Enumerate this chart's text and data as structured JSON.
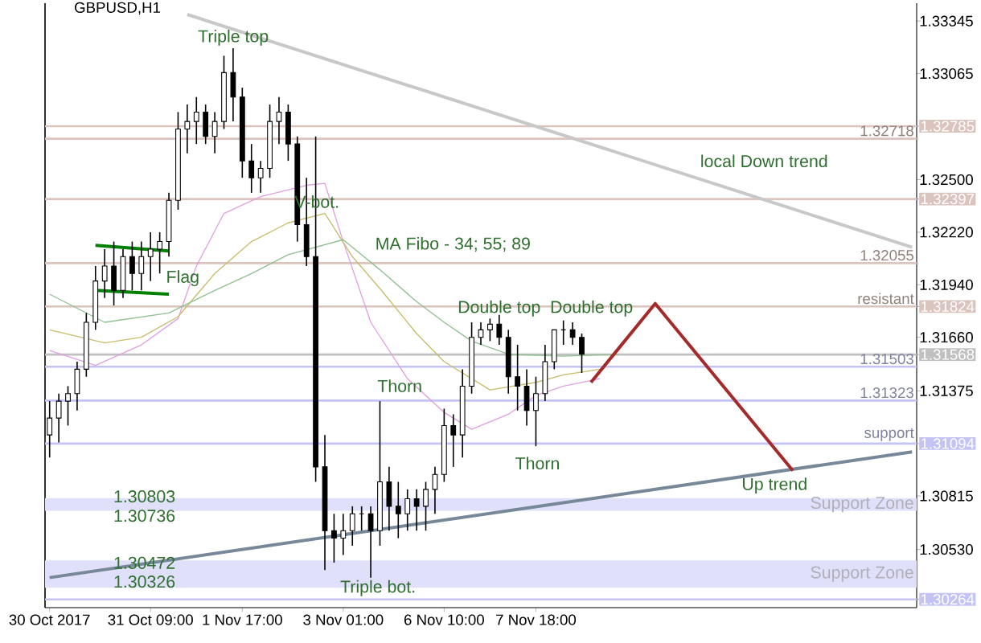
{
  "chart_data": {
    "type": "candlestick",
    "title": "GBPUSD,H1",
    "color": "#000000",
    "categories": [
      "30 Oct 2017",
      null,
      null,
      null,
      null,
      null,
      null,
      null,
      null,
      null,
      null,
      "31 Oct 09:00",
      null,
      null,
      null,
      null,
      null,
      null,
      null,
      null,
      null,
      "1 Nov 17:00",
      null,
      null,
      null,
      null,
      null,
      null,
      null,
      null,
      null,
      null,
      "3 Nov 01:00",
      null,
      null,
      null,
      null,
      null,
      null,
      null,
      null,
      null,
      null,
      "6 Nov 10:00",
      null,
      null,
      null,
      null,
      null,
      null,
      null,
      null,
      null,
      "7 Nov 18:00",
      null,
      null,
      null,
      null,
      null,
      null,
      null,
      null,
      null,
      null,
      null,
      null,
      null,
      null,
      null,
      null,
      null,
      null,
      null,
      null,
      null,
      null,
      null,
      null,
      null,
      null,
      null,
      null,
      null,
      null,
      null,
      null,
      null,
      null,
      null,
      null,
      null,
      null,
      null,
      null,
      null
    ],
    "ohlc": [
      [
        1.3114,
        1.3132,
        1.3102,
        1.3123
      ],
      [
        1.3123,
        1.3136,
        1.311,
        1.3132
      ],
      [
        1.3132,
        1.314,
        1.3119,
        1.3136
      ],
      [
        1.3136,
        1.3153,
        1.3127,
        1.3149
      ],
      [
        1.3149,
        1.3179,
        1.3145,
        1.3174
      ],
      [
        1.3174,
        1.3204,
        1.317,
        1.3196
      ],
      [
        1.3196,
        1.3213,
        1.3187,
        1.3204
      ],
      [
        1.3204,
        1.3217,
        1.3183,
        1.3191
      ],
      [
        1.3191,
        1.3213,
        1.3187,
        1.3209
      ],
      [
        1.3209,
        1.3217,
        1.3191,
        1.32
      ],
      [
        1.32,
        1.3217,
        1.3191,
        1.3209
      ],
      [
        1.3209,
        1.3222,
        1.3196,
        1.3213
      ],
      [
        1.3213,
        1.3222,
        1.32,
        1.3217
      ],
      [
        1.3217,
        1.3243,
        1.3209,
        1.3239
      ],
      [
        1.3239,
        1.3286,
        1.3234,
        1.3277
      ],
      [
        1.3277,
        1.329,
        1.3264,
        1.3281
      ],
      [
        1.3281,
        1.3294,
        1.3269,
        1.3286
      ],
      [
        1.3286,
        1.329,
        1.3269,
        1.3273
      ],
      [
        1.3273,
        1.3286,
        1.3264,
        1.3281
      ],
      [
        1.3281,
        1.3316,
        1.3277,
        1.3307
      ],
      [
        1.3307,
        1.332,
        1.3281,
        1.3294
      ],
      [
        1.3294,
        1.3299,
        1.3251,
        1.326
      ],
      [
        1.326,
        1.3269,
        1.3243,
        1.3251
      ],
      [
        1.3251,
        1.326,
        1.3243,
        1.3256
      ],
      [
        1.3256,
        1.329,
        1.3251,
        1.3281
      ],
      [
        1.3281,
        1.3294,
        1.3269,
        1.3286
      ],
      [
        1.3286,
        1.329,
        1.326,
        1.3269
      ],
      [
        1.3269,
        1.3273,
        1.3217,
        1.3226
      ],
      [
        1.3226,
        1.3251,
        1.3204,
        1.3209
      ],
      [
        1.3209,
        1.3273,
        1.3089,
        1.3097
      ],
      [
        1.3097,
        1.3114,
        1.3042,
        1.3063
      ],
      [
        1.3063,
        1.3072,
        1.3046,
        1.3059
      ],
      [
        1.3059,
        1.3072,
        1.305,
        1.3063
      ],
      [
        1.3063,
        1.3076,
        1.3055,
        1.3072
      ],
      [
        1.3072,
        1.3076,
        1.3063,
        1.3072
      ],
      [
        1.3072,
        1.3076,
        1.3038,
        1.3063
      ],
      [
        1.3063,
        1.3132,
        1.3055,
        1.3089
      ],
      [
        1.3089,
        1.3097,
        1.3063,
        1.3076
      ],
      [
        1.3076,
        1.3089,
        1.3059,
        1.3072
      ],
      [
        1.3072,
        1.3085,
        1.3063,
        1.308
      ],
      [
        1.308,
        1.3085,
        1.3063,
        1.3076
      ],
      [
        1.3076,
        1.3089,
        1.3063,
        1.3085
      ],
      [
        1.3085,
        1.3097,
        1.3072,
        1.3093
      ],
      [
        1.3093,
        1.3128,
        1.3089,
        1.3119
      ],
      [
        1.3119,
        1.3125,
        1.3097,
        1.3114
      ],
      [
        1.3114,
        1.3149,
        1.3102,
        1.314
      ],
      [
        1.314,
        1.3174,
        1.3136,
        1.3166
      ],
      [
        1.3166,
        1.3174,
        1.3162,
        1.317
      ],
      [
        1.317,
        1.3176,
        1.3164,
        1.3173
      ],
      [
        1.3173,
        1.3178,
        1.3162,
        1.3166
      ],
      [
        1.3166,
        1.317,
        1.3136,
        1.3145
      ],
      [
        1.3145,
        1.3162,
        1.3127,
        1.314
      ],
      [
        1.314,
        1.3149,
        1.3119,
        1.3127
      ],
      [
        1.3127,
        1.3145,
        1.3108,
        1.3136
      ],
      [
        1.3136,
        1.3162,
        1.3132,
        1.3153
      ],
      [
        1.3153,
        1.317,
        1.3149,
        1.317
      ],
      [
        1.317,
        1.3175,
        1.3162,
        1.317
      ],
      [
        1.317,
        1.3174,
        1.3162,
        1.3166
      ],
      [
        1.3166,
        1.3168,
        1.3147,
        1.3157
      ],
      null,
      null,
      null,
      null,
      null,
      null,
      null,
      null,
      null,
      null,
      null,
      null,
      null,
      null,
      null,
      null,
      null,
      null,
      null,
      null,
      null,
      null,
      null,
      null,
      null,
      null,
      null,
      null,
      null,
      null,
      null,
      null,
      null,
      null,
      null,
      null
    ],
    "series": [
      {
        "type": "line",
        "color": "#e0a0e0",
        "values": [
          1.3159,
          null,
          null,
          null,
          null,
          1.3151,
          null,
          null,
          null,
          null,
          1.3162,
          null,
          null,
          null,
          1.3176,
          null,
          1.3204,
          null,
          null,
          1.3232,
          null,
          null,
          null,
          1.3241,
          null,
          null,
          null,
          null,
          1.3247,
          null,
          1.3248,
          null,
          1.3217,
          null,
          null,
          1.3174,
          null,
          null,
          null,
          1.3144,
          null,
          null,
          null,
          1.3126,
          null,
          null,
          1.3117,
          null,
          null,
          null,
          1.3125,
          null,
          null,
          1.3135,
          null,
          null,
          1.314,
          null,
          null,
          null,
          1.3144,
          null,
          null,
          null,
          null,
          null,
          null,
          null,
          null,
          null,
          null,
          null,
          null,
          null,
          null,
          null,
          null,
          null,
          null,
          null,
          null,
          null,
          null,
          null,
          null,
          null,
          null,
          null,
          null,
          null,
          null,
          null,
          null,
          null,
          null
        ]
      },
      {
        "type": "line",
        "color": "#c8bc6c",
        "values": [
          1.317,
          null,
          null,
          null,
          null,
          null,
          1.3163,
          null,
          null,
          null,
          1.3166,
          null,
          null,
          null,
          1.3177,
          null,
          null,
          null,
          1.32,
          null,
          null,
          null,
          1.3217,
          null,
          null,
          null,
          1.3227,
          null,
          null,
          null,
          1.3232,
          null,
          null,
          1.3209,
          null,
          null,
          1.3192,
          null,
          null,
          null,
          1.3168,
          null,
          null,
          1.3153,
          null,
          null,
          null,
          null,
          1.3138,
          null,
          null,
          null,
          null,
          1.3142,
          null,
          null,
          1.3146,
          null,
          null,
          null,
          1.3149,
          null,
          null,
          null,
          null,
          null,
          null,
          null,
          null,
          null,
          null,
          null,
          null,
          null,
          null,
          null,
          null,
          null,
          null,
          null,
          null,
          null,
          null,
          null,
          null,
          null,
          null,
          null,
          null,
          null,
          null,
          null,
          null,
          null,
          null
        ]
      },
      {
        "type": "line",
        "color": "#90c090",
        "values": [
          1.3189,
          null,
          null,
          null,
          null,
          null,
          1.3174,
          null,
          null,
          null,
          null,
          null,
          null,
          1.3179,
          null,
          null,
          null,
          null,
          1.3191,
          null,
          null,
          null,
          1.32,
          null,
          null,
          null,
          1.321,
          null,
          null,
          null,
          null,
          null,
          1.3218,
          null,
          null,
          null,
          1.3202,
          null,
          null,
          null,
          1.3185,
          null,
          null,
          1.3174,
          null,
          null,
          1.3164,
          null,
          null,
          null,
          1.3157,
          null,
          null,
          null,
          null,
          null,
          1.3156,
          null,
          null,
          null,
          null,
          null,
          1.3157,
          null,
          null,
          null,
          null,
          null,
          null,
          null,
          null,
          null,
          null,
          null,
          null,
          null,
          null,
          null,
          null,
          null,
          null,
          null,
          null,
          null,
          null,
          null,
          null,
          null,
          null,
          null,
          null,
          null,
          null,
          null,
          null
        ]
      },
      {
        "type": "line",
        "color": "#c8c8c8",
        "values": [
          null,
          null,
          null,
          null,
          null,
          null,
          null,
          null,
          null,
          null,
          null,
          null,
          null,
          null,
          null,
          1.3338,
          null,
          null,
          null,
          null,
          null,
          null,
          null,
          null,
          null,
          null,
          null,
          null,
          null,
          null,
          null,
          null,
          null,
          null,
          null,
          null,
          null,
          null,
          null,
          null,
          null,
          null,
          null,
          null,
          null,
          null,
          null,
          null,
          null,
          null,
          null,
          null,
          null,
          null,
          null,
          null,
          null,
          null,
          null,
          null,
          null,
          null,
          null,
          null,
          null,
          null,
          null,
          null,
          null,
          null,
          null,
          null,
          null,
          null,
          null,
          null,
          null,
          null,
          null,
          null,
          null,
          null,
          null,
          null,
          null,
          null,
          null,
          null,
          null,
          null,
          null,
          null,
          null,
          null,
          1.3214
        ]
      },
      {
        "type": "line",
        "color": "#778899",
        "values": [
          1.3038,
          null,
          null,
          null,
          null,
          null,
          null,
          null,
          null,
          null,
          null,
          null,
          null,
          null,
          null,
          null,
          null,
          null,
          null,
          null,
          null,
          null,
          null,
          null,
          null,
          null,
          null,
          null,
          null,
          null,
          null,
          null,
          null,
          null,
          null,
          null,
          null,
          null,
          null,
          null,
          null,
          null,
          null,
          null,
          null,
          null,
          null,
          null,
          null,
          null,
          null,
          null,
          null,
          null,
          null,
          null,
          null,
          null,
          null,
          null,
          null,
          null,
          null,
          null,
          null,
          null,
          null,
          null,
          null,
          null,
          null,
          null,
          null,
          null,
          null,
          null,
          null,
          null,
          null,
          null,
          null,
          null,
          null,
          null,
          null,
          null,
          null,
          null,
          null,
          null,
          null,
          null,
          null,
          null,
          1.3105
        ]
      },
      {
        "type": "line",
        "color": "#008000",
        "values": [
          null,
          null,
          null,
          null,
          null,
          1.3215,
          null,
          null,
          null,
          null,
          null,
          null,
          null,
          1.3212,
          null,
          null,
          null,
          null,
          null,
          null,
          null,
          null,
          null,
          null,
          null,
          null,
          null,
          null,
          null,
          null,
          null,
          null,
          null,
          null,
          null,
          null,
          null,
          null,
          null,
          null,
          null,
          null,
          null,
          null,
          null,
          null,
          null,
          null,
          null,
          null,
          null,
          null,
          null,
          null,
          null,
          null,
          null,
          null,
          null,
          null,
          null,
          null,
          null,
          null,
          null,
          null,
          null,
          null,
          null,
          null,
          null,
          null,
          null,
          null,
          null,
          null,
          null,
          null,
          null,
          null,
          null,
          null,
          null,
          null,
          null,
          null,
          null,
          null,
          null,
          null,
          null,
          null,
          null,
          null,
          null
        ]
      },
      {
        "type": "line",
        "color": "#008000",
        "values": [
          null,
          null,
          null,
          null,
          null,
          1.3191,
          null,
          null,
          null,
          null,
          null,
          null,
          null,
          1.3189,
          null,
          null,
          null,
          null,
          null,
          null,
          null,
          null,
          null,
          null,
          null,
          null,
          null,
          null,
          null,
          null,
          null,
          null,
          null,
          null,
          null,
          null,
          null,
          null,
          null,
          null,
          null,
          null,
          null,
          null,
          null,
          null,
          null,
          null,
          null,
          null,
          null,
          null,
          null,
          null,
          null,
          null,
          null,
          null,
          null,
          null,
          null,
          null,
          null,
          null,
          null,
          null,
          null,
          null,
          null,
          null,
          null,
          null,
          null,
          null,
          null,
          null,
          null,
          null,
          null,
          null,
          null,
          null,
          null,
          null,
          null,
          null,
          null,
          null,
          null,
          null,
          null,
          null,
          null,
          null,
          null
        ]
      },
      {
        "type": "line",
        "color": "#a52a2a",
        "values": [
          null,
          null,
          null,
          null,
          null,
          null,
          null,
          null,
          null,
          null,
          null,
          null,
          null,
          null,
          null,
          null,
          null,
          null,
          null,
          null,
          null,
          null,
          null,
          null,
          null,
          null,
          null,
          null,
          null,
          null,
          null,
          null,
          null,
          null,
          null,
          null,
          null,
          null,
          null,
          null,
          null,
          null,
          null,
          null,
          null,
          null,
          null,
          null,
          null,
          null,
          null,
          null,
          null,
          null,
          null,
          null,
          null,
          null,
          null,
          1.3142,
          null,
          null,
          null,
          null,
          null,
          null,
          1.3184,
          null,
          null,
          null,
          null,
          null,
          null,
          null,
          null,
          null,
          null,
          null,
          null,
          null,
          null,
          1.3095,
          null,
          null,
          null,
          null,
          null,
          null,
          null,
          null,
          null,
          null,
          null,
          null,
          null
        ]
      }
    ],
    "annotations": [
      {
        "text": "Triple top",
        "y": 1.332
      },
      {
        "text": "V-bot.",
        "y": 1.3243
      },
      "Flag",
      "MA Fibo - 34; 55; 89",
      "local Down trend",
      "Double top",
      "Double top",
      "Thorn",
      "Thorn",
      {
        "text": "Triple bot.",
        "y": 1.3038
      },
      "Up trend",
      "1.30803",
      "1.30736",
      "1.30472",
      "1.30326"
    ],
    "ref_lines": [
      {
        "axis": "y",
        "value": 1.32785,
        "color": "#dcc4be"
      },
      {
        "axis": "y",
        "value": 1.32718,
        "label": "1.32718",
        "color": "#dcc4be"
      },
      {
        "axis": "y",
        "value": 1.32397,
        "color": "#dcc4be"
      },
      {
        "axis": "y",
        "value": 1.32055,
        "label": "1.32055",
        "color": "#dcc4be"
      },
      {
        "axis": "y",
        "value": 1.31824,
        "label": "resistant",
        "color": "#dcc4be"
      },
      {
        "axis": "y",
        "value": 1.31568,
        "color": "#c0c0c0"
      },
      {
        "axis": "y",
        "value": 1.31503,
        "label": "1.31503",
        "color": "#c4c4f4"
      },
      {
        "axis": "y",
        "value": 1.31323,
        "label": "1.31323",
        "color": "#c4c4f4"
      },
      {
        "axis": "y",
        "value": 1.31094,
        "label": "support",
        "color": "#c4c4f4"
      },
      {
        "axis": "y",
        "value": 1.30264,
        "color": "#c4c4f4"
      }
    ],
    "bands": [
      {
        "axis": "y",
        "from": 1.30736,
        "to": 1.30803,
        "label": "Support Zone",
        "color": "#e0e0fa"
      },
      {
        "axis": "y",
        "from": 1.30326,
        "to": 1.30472,
        "label": "Support Zone",
        "color": "#e0e0fa"
      }
    ],
    "ylim": [
      1.3022,
      1.3344
    ],
    "yticks": [
      {
        "value": 1.33345,
        "label": "1.33345"
      },
      {
        "value": 1.33065,
        "label": "1.33065"
      },
      {
        "value": 1.32785,
        "label": "1.32785"
      },
      {
        "value": 1.325,
        "label": "1.32500"
      },
      {
        "value": 1.32397,
        "label": "1.32397"
      },
      {
        "value": 1.3222,
        "label": "1.32220"
      },
      {
        "value": 1.3194,
        "label": "1.31940"
      },
      {
        "value": 1.31824,
        "label": "1.31824"
      },
      {
        "value": 1.3166,
        "label": "1.31660"
      },
      {
        "value": 1.31568,
        "label": "1.31568"
      },
      {
        "value": 1.31375,
        "label": "1.31375"
      },
      {
        "value": 1.31094,
        "label": "1.31094"
      },
      {
        "value": 1.30815,
        "label": "1.30815"
      },
      {
        "value": 1.3053,
        "label": "1.30530"
      },
      {
        "value": 1.30264,
        "label": "1.30264"
      }
    ]
  }
}
